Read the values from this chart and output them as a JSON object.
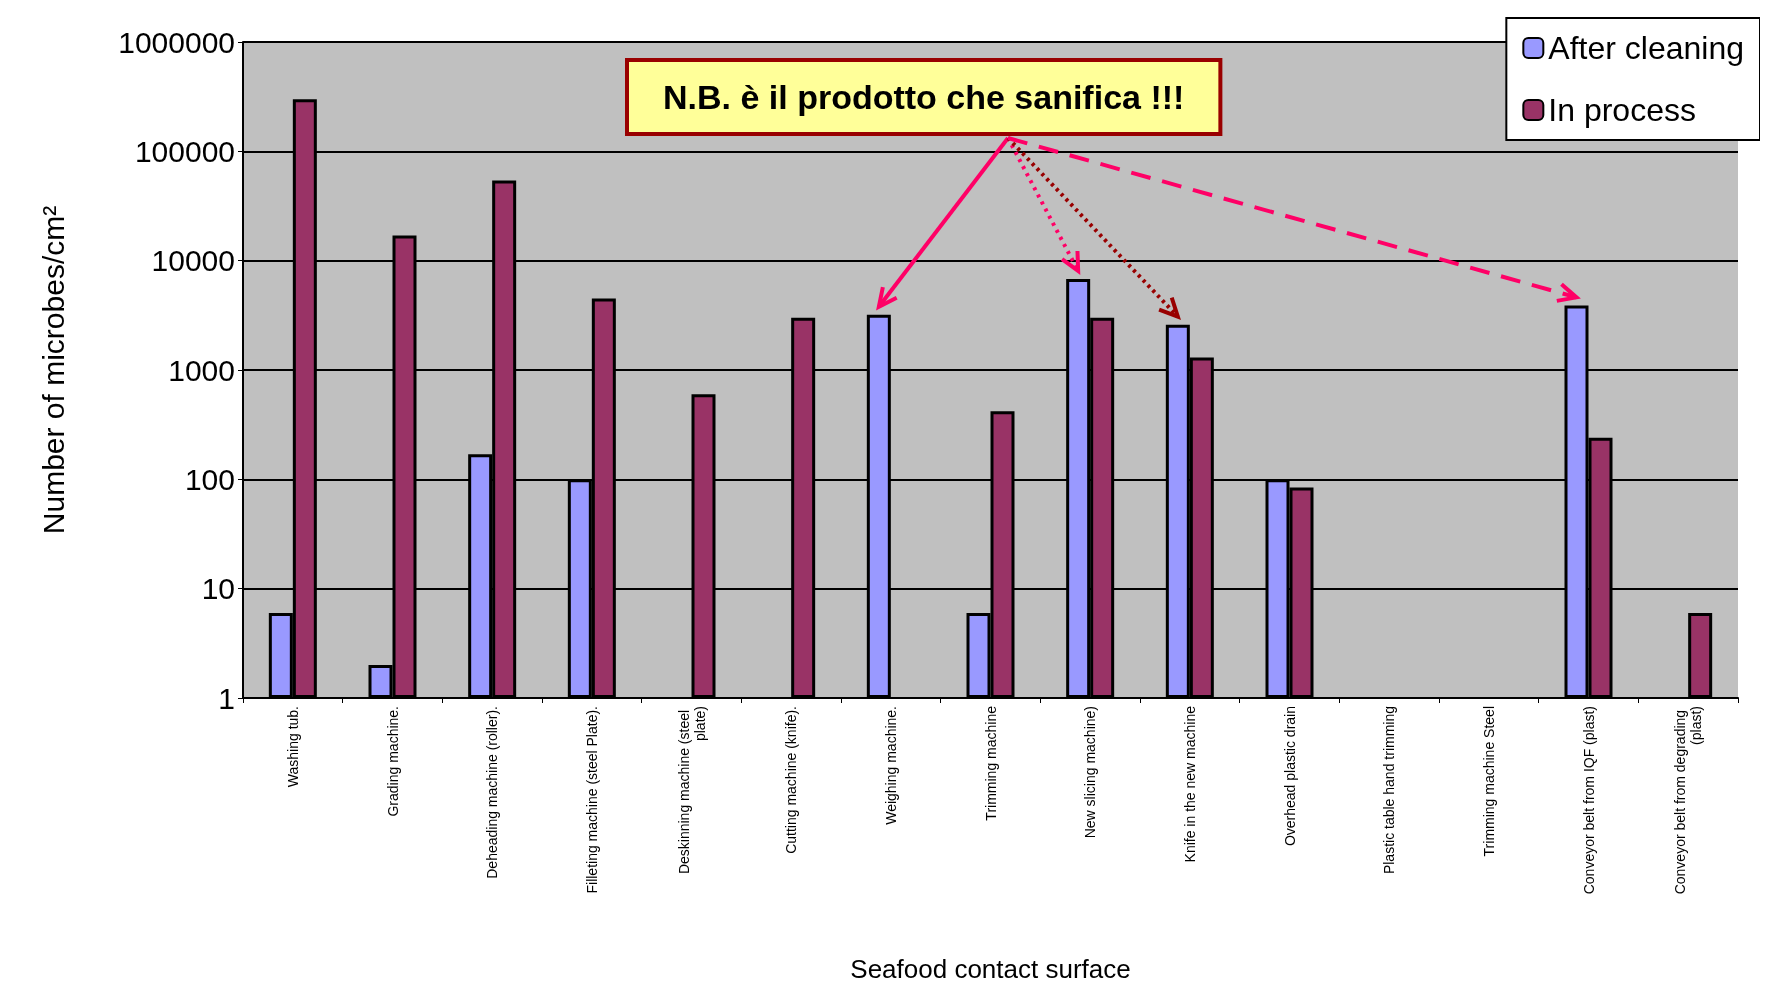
{
  "chart_data": {
    "type": "bar",
    "xlabel": "Seafood contact surface",
    "ylabel": "Number of microbes/cm²",
    "annotations": [
      "N.B. è il prodotto che sanifica !!!"
    ],
    "categories": [
      "Washing tub.",
      "Grading machine.",
      "Deheading machine (roller).",
      "Filleting machine (steel Plate).",
      "Deskinning machine (steel plate)",
      "Cutting machine (knife).",
      "Weighing machine.",
      "Trimming machine",
      "New slicing machine)",
      "Knife in the new machine",
      "Overhead plastic drain",
      "Plastic table hand trimming",
      "Trimming machine Steel",
      "Conveyor belt from IQF (plast)",
      "Conveyor belt from degrading (plast)"
    ],
    "series": [
      {
        "name": "After cleaning",
        "color": "#9999ff",
        "values": [
          6,
          2,
          170,
          100,
          null,
          null,
          3200,
          6,
          6800,
          2600,
          100,
          null,
          null,
          3900,
          null
        ]
      },
      {
        "name": "In process",
        "color": "#993366",
        "values": [
          300000,
          17000,
          54000,
          4500,
          600,
          3000,
          null,
          420,
          3000,
          1300,
          84,
          null,
          null,
          240,
          6
        ]
      }
    ],
    "log": true,
    "ylim": [
      1,
      1000000
    ],
    "yticks": [
      1,
      10,
      100,
      1000,
      10000,
      100000,
      1000000
    ],
    "grid": "y",
    "legend": "top right"
  }
}
